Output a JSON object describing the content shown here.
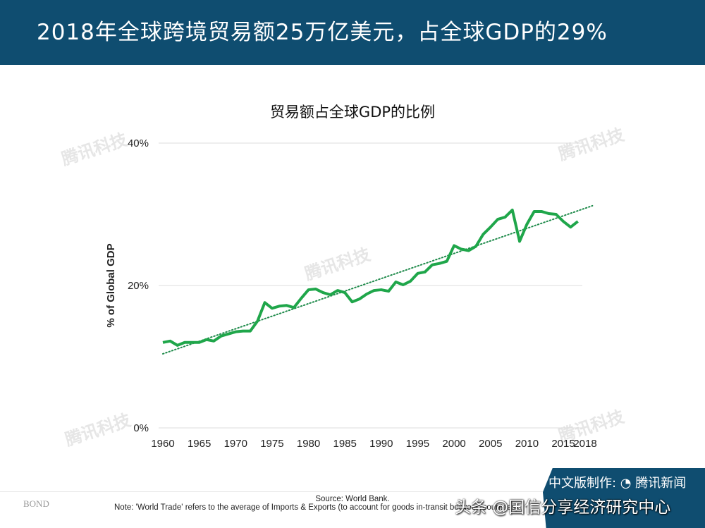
{
  "header": {
    "title": "2018年全球跨境贸易额25万亿美元，占全球GDP的29%"
  },
  "watermark": "腾讯科技",
  "chart_data": {
    "type": "line",
    "title": "贸易额占全球GDP的比例",
    "xlabel": "",
    "ylabel": "% of Global GDP",
    "xlim": [
      1960,
      2018
    ],
    "ylim": [
      0,
      40
    ],
    "x_ticks": [
      "1960",
      "1965",
      "1970",
      "1975",
      "1980",
      "1985",
      "1990",
      "1995",
      "2000",
      "2005",
      "2010",
      "2015",
      "2018"
    ],
    "y_ticks": [
      "0%",
      "20%",
      "40%"
    ],
    "grid": "horizontal",
    "line_color": "#1fa64a",
    "x": [
      1960,
      1961,
      1962,
      1963,
      1964,
      1965,
      1966,
      1967,
      1968,
      1969,
      1970,
      1971,
      1972,
      1973,
      1974,
      1975,
      1976,
      1977,
      1978,
      1979,
      1980,
      1981,
      1982,
      1983,
      1984,
      1985,
      1986,
      1987,
      1988,
      1989,
      1990,
      1991,
      1992,
      1993,
      1994,
      1995,
      1996,
      1997,
      1998,
      1999,
      2000,
      2001,
      2002,
      2003,
      2004,
      2005,
      2006,
      2007,
      2008,
      2009,
      2010,
      2011,
      2012,
      2013,
      2014,
      2015,
      2016,
      2017
    ],
    "values": [
      12.0,
      12.2,
      11.6,
      12.0,
      12.0,
      12.0,
      12.4,
      12.2,
      12.9,
      13.2,
      13.5,
      13.6,
      13.6,
      15.0,
      17.6,
      16.8,
      17.1,
      17.2,
      16.9,
      18.2,
      19.4,
      19.5,
      19.0,
      18.7,
      19.3,
      19.0,
      17.7,
      18.1,
      18.8,
      19.3,
      19.4,
      19.2,
      20.5,
      20.1,
      20.6,
      21.7,
      21.9,
      22.9,
      23.1,
      23.4,
      25.6,
      25.1,
      24.9,
      25.5,
      27.2,
      28.2,
      29.3,
      29.6,
      30.6,
      26.2,
      28.6,
      30.4,
      30.4,
      30.1,
      30.0,
      29.0,
      28.2,
      29.0
    ],
    "trendline": {
      "style": "dotted",
      "color": "#1e8a4a",
      "from": [
        1960,
        10.4
      ],
      "to": [
        2019,
        31.2
      ]
    }
  },
  "footer": {
    "brand": "BOND",
    "source": "Source: World Bank.",
    "note": "Note: 'World Trade' refers to the average of Imports & Exports (to account for goods in-transit between countries).",
    "credit": "中文版制作: ◔ 腾讯新闻",
    "overlay": "头条 @国信分享经济研究中心"
  }
}
